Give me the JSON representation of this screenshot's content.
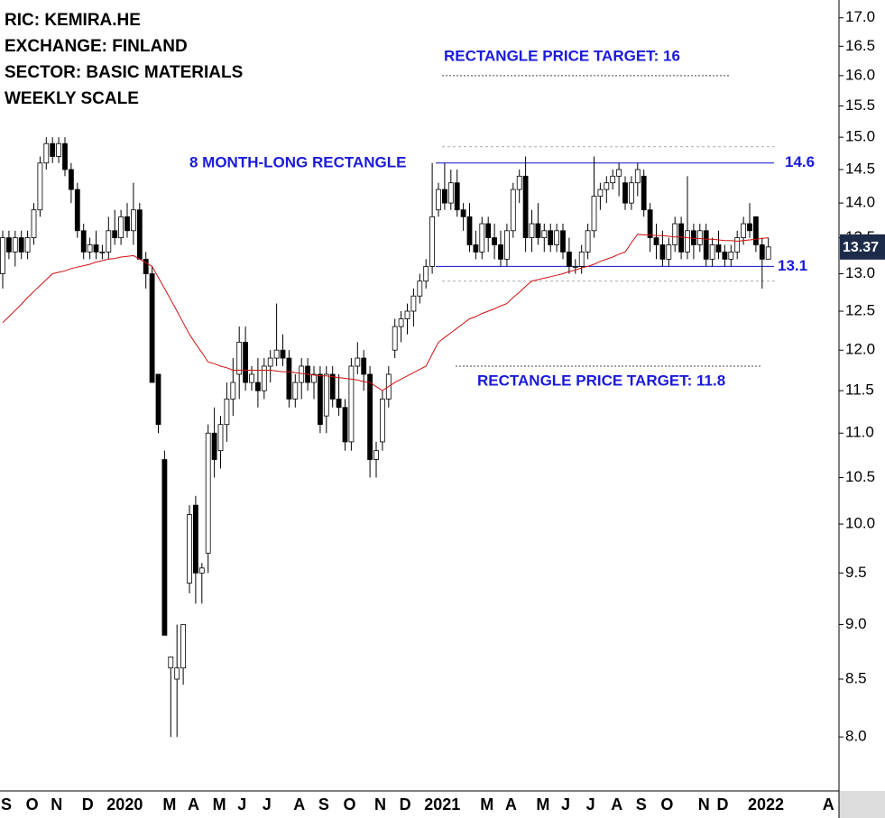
{
  "chart_data": {
    "type": "candlestick",
    "header_lines": [
      "RIC: KEMIRA.HE",
      "EXCHANGE: FINLAND",
      "SECTOR: BASIC MATERIALS",
      "WEEKLY SCALE"
    ],
    "log_scale": true,
    "ylim": [
      7.56,
      17.32
    ],
    "yticks": [
      {
        "value": 8,
        "label": "8.0"
      },
      8.5,
      {
        "value": 9,
        "label": "9.0"
      },
      9.5,
      {
        "value": 10,
        "label": "10.0"
      },
      10.5,
      {
        "value": 11,
        "label": "11.0"
      },
      11.5,
      {
        "value": 12,
        "label": "12.0"
      },
      12.5,
      {
        "value": 13,
        "label": "13.0"
      },
      13.5,
      {
        "value": 14,
        "label": "14.0"
      },
      14.5,
      {
        "value": 15,
        "label": "15.0"
      },
      15.5,
      {
        "value": 16,
        "label": "16.0"
      },
      16.5,
      {
        "value": 17,
        "label": "17.0"
      }
    ],
    "categories": [
      "S",
      null,
      null,
      null,
      "O",
      null,
      null,
      null,
      "N",
      null,
      null,
      null,
      null,
      "D",
      null,
      null,
      null,
      "2020",
      null,
      null,
      null,
      null,
      null,
      null,
      null,
      null,
      "M",
      null,
      null,
      null,
      "A",
      null,
      null,
      null,
      "M",
      null,
      null,
      null,
      "J",
      null,
      null,
      null,
      "J",
      null,
      null,
      null,
      null,
      "A",
      null,
      null,
      null,
      "S",
      null,
      null,
      null,
      "O",
      null,
      null,
      null,
      null,
      "N",
      null,
      null,
      null,
      "D",
      null,
      null,
      null,
      "2021",
      null,
      null,
      null,
      null,
      null,
      null,
      null,
      null,
      "M",
      null,
      null,
      null,
      "A",
      null,
      null,
      null,
      null,
      "M",
      null,
      null,
      null,
      "J",
      null,
      null,
      null,
      "J",
      null,
      null,
      null,
      "A",
      null,
      null,
      null,
      "S",
      null,
      null,
      null,
      "O",
      null,
      null,
      null,
      null,
      null,
      "N",
      null,
      null,
      "D",
      null,
      null,
      null,
      null,
      "2022",
      null,
      null,
      null,
      null,
      null,
      null,
      null,
      null,
      null,
      null,
      null,
      "A",
      null
    ],
    "open": [
      13.0,
      13.5,
      13.3,
      13.5,
      13.3,
      13.5,
      13.9,
      14.6,
      14.9,
      14.7,
      14.9,
      14.5,
      14.2,
      13.6,
      13.3,
      13.4,
      13.3,
      13.3,
      13.6,
      13.5,
      13.8,
      13.6,
      13.9,
      13.2,
      13.0,
      11.7,
      10.7,
      8.6,
      8.5,
      8.6,
      9.4,
      10.2,
      9.5,
      9.7,
      11.0,
      10.8,
      11.1,
      11.4,
      11.7,
      12.1,
      11.6,
      11.6,
      11.5,
      11.8,
      11.9,
      12.0,
      11.9,
      11.4,
      11.6,
      11.8,
      11.6,
      11.7,
      11.2,
      11.7,
      11.4,
      11.3,
      10.9,
      11.8,
      11.9,
      11.7,
      10.7,
      10.9,
      11.4,
      12.0,
      12.3,
      12.4,
      12.5,
      12.7,
      12.9,
      13.1,
      13.9,
      14.2,
      14.0,
      14.3,
      13.9,
      13.8,
      13.4,
      13.3,
      13.7,
      13.5,
      13.4,
      13.2,
      13.6,
      14.2,
      14.4,
      13.5,
      13.7,
      13.5,
      13.6,
      13.4,
      13.6,
      13.3,
      13.1,
      13.1,
      13.3,
      13.6,
      14.1,
      14.2,
      14.3,
      14.4,
      14.3,
      14.0,
      14.3,
      14.4,
      13.9,
      13.5,
      13.4,
      13.2,
      13.4,
      13.7,
      13.3,
      13.6,
      13.4,
      13.6,
      13.2,
      13.4,
      13.3,
      13.2,
      13.3,
      13.5,
      13.7,
      13.8,
      13.4,
      13.2,
      null,
      null,
      null,
      null,
      null,
      null,
      null,
      null,
      null,
      null
    ],
    "high": [
      13.6,
      13.6,
      13.6,
      13.6,
      13.6,
      14.0,
      14.7,
      15.0,
      15.0,
      15.0,
      15.0,
      14.6,
      14.3,
      13.7,
      13.5,
      13.6,
      13.4,
      13.8,
      13.9,
      13.9,
      14.0,
      14.3,
      14.0,
      13.3,
      13.1,
      11.7,
      10.8,
      8.7,
      9.0,
      9.0,
      10.2,
      10.3,
      9.6,
      11.1,
      11.3,
      11.2,
      11.6,
      11.9,
      12.3,
      12.3,
      11.8,
      11.9,
      11.9,
      12.0,
      12.6,
      12.2,
      12.0,
      11.7,
      11.9,
      11.9,
      11.8,
      11.8,
      11.8,
      11.8,
      11.7,
      11.4,
      11.9,
      12.1,
      12.0,
      11.8,
      10.9,
      11.5,
      11.8,
      12.4,
      12.5,
      12.6,
      12.8,
      13.0,
      13.2,
      14.6,
      14.3,
      14.6,
      14.5,
      14.5,
      14.0,
      14.0,
      13.6,
      13.8,
      13.8,
      13.7,
      13.6,
      13.7,
      14.3,
      14.5,
      14.7,
      13.9,
      14.0,
      13.7,
      13.7,
      13.7,
      13.7,
      13.5,
      13.2,
      13.4,
      13.7,
      14.7,
      14.3,
      14.4,
      14.5,
      14.6,
      14.4,
      14.4,
      14.6,
      14.5,
      14.0,
      13.7,
      13.6,
      13.5,
      13.8,
      13.8,
      14.4,
      13.7,
      13.7,
      13.7,
      13.5,
      13.6,
      13.4,
      13.4,
      13.6,
      13.8,
      14.0,
      13.8,
      13.5,
      13.5,
      null,
      null,
      null,
      null,
      null,
      null,
      null,
      null,
      null,
      null
    ],
    "low": [
      12.8,
      13.2,
      13.1,
      13.2,
      13.2,
      13.4,
      13.8,
      14.5,
      14.6,
      14.6,
      14.4,
      14.0,
      13.5,
      13.2,
      13.2,
      13.2,
      13.2,
      13.2,
      13.4,
      13.4,
      13.5,
      13.4,
      13.2,
      12.8,
      11.6,
      11.0,
      8.9,
      8.0,
      8.0,
      8.45,
      9.3,
      9.2,
      9.2,
      9.5,
      10.5,
      10.6,
      10.9,
      11.2,
      11.4,
      11.5,
      11.5,
      11.3,
      11.4,
      11.6,
      11.8,
      11.8,
      11.3,
      11.3,
      11.4,
      11.5,
      11.4,
      11.0,
      11.0,
      11.3,
      11.2,
      10.8,
      10.8,
      11.7,
      11.5,
      10.5,
      10.5,
      10.8,
      11.3,
      11.9,
      12.1,
      12.2,
      12.3,
      12.6,
      12.8,
      13.0,
      13.8,
      13.9,
      13.9,
      13.8,
      13.6,
      13.3,
      13.2,
      13.2,
      13.3,
      13.2,
      13.1,
      13.1,
      13.5,
      14.0,
      13.3,
      13.3,
      13.4,
      13.3,
      13.3,
      13.3,
      13.2,
      13.0,
      13.0,
      13.0,
      13.2,
      13.5,
      13.9,
      14.0,
      14.2,
      14.1,
      13.9,
      13.9,
      14.1,
      13.8,
      13.3,
      13.2,
      13.1,
      13.1,
      13.3,
      13.2,
      13.2,
      13.2,
      13.3,
      13.1,
      13.1,
      13.2,
      13.1,
      13.1,
      13.2,
      13.4,
      13.5,
      13.3,
      12.8,
      13.2,
      null,
      null,
      null,
      null,
      null,
      null,
      null,
      null,
      null,
      null
    ],
    "close": [
      13.5,
      13.3,
      13.5,
      13.3,
      13.5,
      13.9,
      14.6,
      14.9,
      14.7,
      14.9,
      14.5,
      14.2,
      13.6,
      13.3,
      13.4,
      13.3,
      13.3,
      13.6,
      13.5,
      13.8,
      13.6,
      13.9,
      13.2,
      13.0,
      11.6,
      11.1,
      8.9,
      8.7,
      8.6,
      9.0,
      10.1,
      9.5,
      9.55,
      11.0,
      10.7,
      11.1,
      11.4,
      11.6,
      12.1,
      11.6,
      11.7,
      11.5,
      11.8,
      11.9,
      12.0,
      11.9,
      11.4,
      11.6,
      11.8,
      11.6,
      11.7,
      11.1,
      11.7,
      11.4,
      11.3,
      10.9,
      11.8,
      11.9,
      11.7,
      10.7,
      10.8,
      11.4,
      11.7,
      12.3,
      12.4,
      12.5,
      12.7,
      12.9,
      13.1,
      13.8,
      14.2,
      14.0,
      14.3,
      13.9,
      13.8,
      13.4,
      13.3,
      13.7,
      13.5,
      13.4,
      13.2,
      13.6,
      14.2,
      14.4,
      13.5,
      13.7,
      13.5,
      13.6,
      13.4,
      13.6,
      13.3,
      13.1,
      13.1,
      13.3,
      13.6,
      14.1,
      14.2,
      14.3,
      14.4,
      14.5,
      14.0,
      14.3,
      14.5,
      13.9,
      13.5,
      13.4,
      13.2,
      13.4,
      13.7,
      13.3,
      13.6,
      13.4,
      13.6,
      13.2,
      13.4,
      13.3,
      13.2,
      13.3,
      13.5,
      13.7,
      13.6,
      13.4,
      13.2,
      13.37,
      null,
      null,
      null,
      null,
      null,
      null,
      null,
      null,
      null,
      null
    ],
    "moving_average": [
      12.35,
      12.43,
      12.51,
      12.59,
      12.68,
      12.76,
      12.84,
      12.92,
      13.0,
      13.02,
      13.04,
      13.07,
      13.09,
      13.11,
      13.13,
      13.16,
      13.18,
      13.2,
      13.21,
      13.23,
      13.24,
      13.25,
      13.2,
      13.15,
      13.1,
      12.95,
      12.8,
      12.65,
      12.5,
      12.35,
      12.2,
      12.08,
      11.97,
      11.85,
      11.83,
      11.8,
      11.78,
      11.75,
      11.75,
      11.75,
      11.75,
      11.75,
      11.75,
      11.75,
      11.74,
      11.73,
      11.73,
      11.72,
      11.71,
      11.7,
      11.69,
      11.68,
      11.68,
      11.67,
      11.66,
      11.65,
      11.64,
      11.63,
      11.61,
      11.6,
      11.55,
      11.5,
      11.55,
      11.6,
      11.64,
      11.68,
      11.72,
      11.76,
      11.8,
      11.95,
      12.1,
      12.16,
      12.22,
      12.28,
      12.34,
      12.4,
      12.43,
      12.47,
      12.5,
      12.53,
      12.57,
      12.6,
      12.68,
      12.75,
      12.83,
      12.9,
      12.92,
      12.94,
      12.96,
      12.98,
      13.0,
      13.03,
      13.05,
      13.08,
      13.1,
      13.13,
      13.17,
      13.2,
      13.23,
      13.27,
      13.3,
      13.43,
      13.55,
      13.54,
      13.54,
      13.53,
      13.53,
      13.52,
      13.51,
      13.51,
      13.5,
      13.49,
      13.49,
      13.48,
      13.48,
      13.47,
      13.46,
      13.46,
      13.45,
      13.46,
      13.47,
      13.48,
      13.49,
      13.5,
      null,
      null,
      null,
      null,
      null,
      null,
      null,
      null,
      null,
      null
    ],
    "up_color": "#ffffff",
    "down_color": "#000000",
    "ma_color": "#d01010",
    "rectangle_label": "8 MONTH-LONG RECTANGLE",
    "rectangle_top": 14.6,
    "rectangle_bottom": 13.1,
    "rectangle_color": "#1010cc",
    "target_up": {
      "label": "RECTANGLE PRICE TARGET: 16",
      "value": 16
    },
    "target_down": {
      "label": "RECTANGLE PRICE TARGET: 11.8",
      "value": 11.8
    },
    "band_lines": [
      14.85,
      12.9
    ]
  }
}
